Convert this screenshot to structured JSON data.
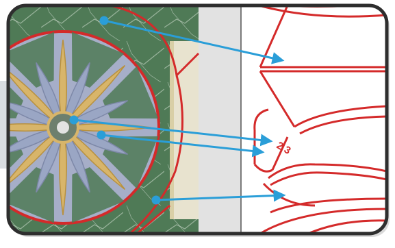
{
  "figure": {
    "frame_color": "#2e2e2e",
    "accent_color": "#d42a2a",
    "arrow_color": "#2a9ed8",
    "marble_color": "#4f7a56",
    "petal_gold": "#d8b56a",
    "petal_blue": "#9aa6c4",
    "key_label": "2 3",
    "arrow_count": 4
  }
}
